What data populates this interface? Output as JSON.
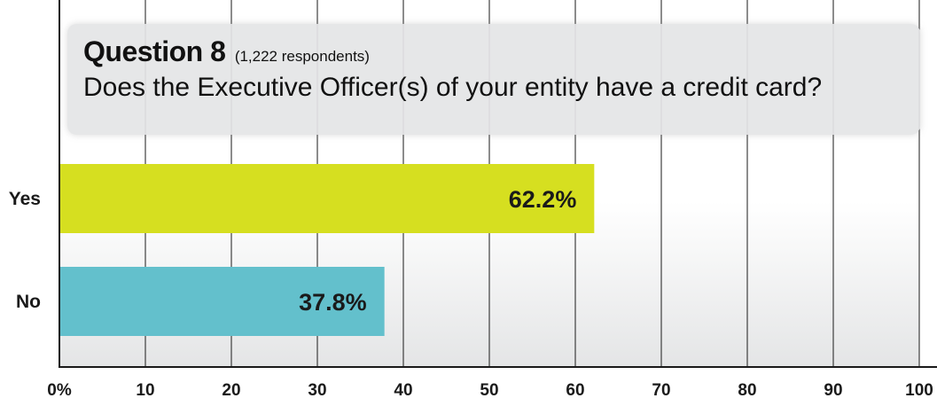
{
  "question": {
    "title": "Question 8",
    "respondents": "(1,222 respondents)",
    "text": "Does the Executive Officer(s) of your entity have a credit card?"
  },
  "chart_data": {
    "type": "bar",
    "orientation": "horizontal",
    "categories": [
      "Yes",
      "No"
    ],
    "values": [
      62.2,
      37.8
    ],
    "value_labels": [
      "62.2%",
      "37.8%"
    ],
    "colors": [
      "#d6df20",
      "#63c0cc"
    ],
    "x_ticks": [
      "0%",
      "10",
      "20",
      "30",
      "40",
      "50",
      "60",
      "70",
      "80",
      "90",
      "100"
    ],
    "xlim": [
      0,
      100
    ],
    "grid": true,
    "legend": "none"
  }
}
